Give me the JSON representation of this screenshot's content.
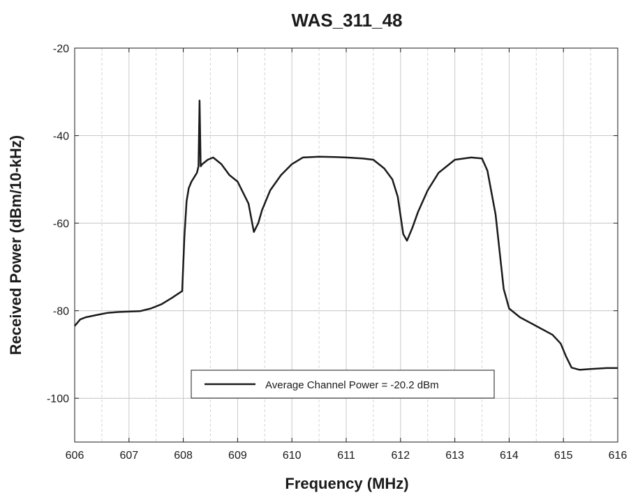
{
  "chart_data": {
    "type": "line",
    "title": "WAS_311_48",
    "xlabel": "Frequency (MHz)",
    "ylabel": "Received Power (dBm/10-kHz)",
    "xlim": [
      606,
      616
    ],
    "ylim": [
      -110,
      -20
    ],
    "x_ticks": [
      606,
      607,
      608,
      609,
      610,
      611,
      612,
      613,
      614,
      615,
      616
    ],
    "x_tick_labels": [
      "606",
      "607",
      "608",
      "609",
      "610",
      "611",
      "612",
      "613",
      "614",
      "615",
      "616"
    ],
    "y_ticks": [
      -20,
      -40,
      -60,
      -80,
      -100
    ],
    "y_tick_labels": [
      "-20",
      "-40",
      "-60",
      "-80",
      "-100"
    ],
    "grid": true,
    "legend_position": "bottom-center",
    "line_color": "#1a1a1a",
    "series": [
      {
        "name": "Average Channel Power = -20.2 dBm",
        "x": [
          606.0,
          606.1,
          606.2,
          606.4,
          606.6,
          606.8,
          607.0,
          607.2,
          607.4,
          607.6,
          607.8,
          607.98,
          608.02,
          608.06,
          608.1,
          608.15,
          608.2,
          608.25,
          608.28,
          608.3,
          608.32,
          608.35,
          608.45,
          608.55,
          608.7,
          608.85,
          609.0,
          609.1,
          609.2,
          609.3,
          609.38,
          609.45,
          609.6,
          609.8,
          610.0,
          610.2,
          610.5,
          610.8,
          611.0,
          611.3,
          611.5,
          611.7,
          611.85,
          611.95,
          612.05,
          612.12,
          612.22,
          612.32,
          612.5,
          612.7,
          613.0,
          613.3,
          613.5,
          613.6,
          613.75,
          613.9,
          614.0,
          614.2,
          614.5,
          614.8,
          614.95,
          615.05,
          615.15,
          615.3,
          615.5,
          615.8,
          616.0
        ],
        "y": [
          -83.5,
          -82.0,
          -81.5,
          -81.0,
          -80.5,
          -80.3,
          -80.2,
          -80.1,
          -79.5,
          -78.5,
          -77.0,
          -75.5,
          -63,
          -55,
          -52,
          -50.5,
          -49.5,
          -48.5,
          -47.0,
          -32.0,
          -47.0,
          -46.5,
          -45.5,
          -45.0,
          -46.5,
          -49.0,
          -50.5,
          -53.0,
          -55.5,
          -62.0,
          -60.0,
          -57.0,
          -52.5,
          -49.0,
          -46.5,
          -45.0,
          -44.8,
          -44.9,
          -45.0,
          -45.2,
          -45.5,
          -47.5,
          -50.0,
          -54.0,
          -62.5,
          -64.0,
          -61.0,
          -57.5,
          -52.5,
          -48.5,
          -45.5,
          -45.0,
          -45.2,
          -48.0,
          -58.0,
          -75.0,
          -79.5,
          -81.5,
          -83.5,
          -85.5,
          -87.5,
          -90.5,
          -93.0,
          -93.5,
          -93.3,
          -93.1,
          -93.1
        ]
      }
    ]
  }
}
